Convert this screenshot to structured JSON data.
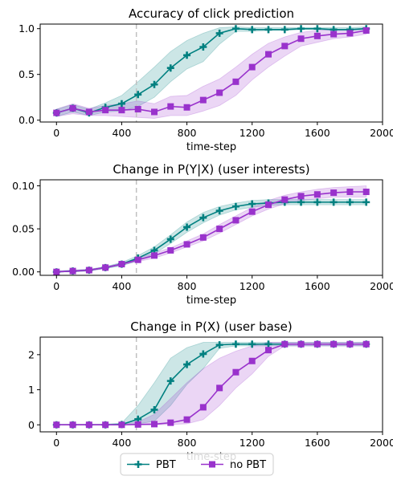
{
  "colors": {
    "pbt": "#008080",
    "no_pbt": "#9932CC",
    "vline": "#c0c0c0"
  },
  "legend": [
    {
      "label": "PBT",
      "marker": "plus",
      "color": "#008080"
    },
    {
      "label": "no PBT",
      "marker": "square",
      "color": "#9932CC"
    }
  ],
  "chart_data": [
    {
      "type": "line",
      "title": "Accuracy of click prediction",
      "xlabel": "time-step",
      "ylabel": "",
      "xlim": [
        -100,
        2000
      ],
      "ylim": [
        -0.02,
        1.05
      ],
      "xticks": [
        0,
        400,
        800,
        1200,
        1600,
        2000
      ],
      "xtick_labels": [
        "0",
        "400",
        "800",
        "1200",
        "1600",
        "2000"
      ],
      "yticks": [
        0.0,
        0.5,
        1.0
      ],
      "ytick_labels": [
        "0.0",
        "0.5",
        "1.0"
      ],
      "vline": 490,
      "x": [
        0,
        100,
        200,
        300,
        400,
        500,
        600,
        700,
        800,
        900,
        1000,
        1100,
        1200,
        1300,
        1400,
        1500,
        1600,
        1700,
        1800,
        1900
      ],
      "series": [
        {
          "name": "PBT",
          "marker": "plus",
          "color": "#008080",
          "values": [
            0.08,
            0.13,
            0.08,
            0.14,
            0.18,
            0.28,
            0.39,
            0.57,
            0.71,
            0.8,
            0.95,
            1.0,
            0.99,
            0.99,
            0.99,
            1.0,
            1.0,
            0.99,
            0.99,
            1.0
          ],
          "lower": [
            0.04,
            0.09,
            0.05,
            0.09,
            0.1,
            0.15,
            0.25,
            0.42,
            0.56,
            0.64,
            0.83,
            0.97,
            0.97,
            0.98,
            0.98,
            0.99,
            0.99,
            0.98,
            0.98,
            0.99
          ],
          "upper": [
            0.12,
            0.17,
            0.12,
            0.19,
            0.27,
            0.42,
            0.58,
            0.75,
            0.87,
            0.95,
            1.01,
            1.02,
            1.01,
            1.01,
            1.01,
            1.01,
            1.01,
            1.01,
            1.01,
            1.02
          ]
        },
        {
          "name": "no PBT",
          "marker": "square",
          "color": "#9932CC",
          "values": [
            0.08,
            0.13,
            0.09,
            0.11,
            0.11,
            0.12,
            0.09,
            0.15,
            0.14,
            0.22,
            0.3,
            0.42,
            0.58,
            0.72,
            0.81,
            0.89,
            0.92,
            0.94,
            0.95,
            0.98
          ],
          "lower": [
            0.04,
            0.07,
            0.05,
            0.05,
            0.04,
            0.03,
            0.02,
            0.05,
            0.05,
            0.1,
            0.16,
            0.27,
            0.44,
            0.58,
            0.7,
            0.81,
            0.85,
            0.89,
            0.91,
            0.94
          ],
          "upper": [
            0.12,
            0.18,
            0.13,
            0.16,
            0.18,
            0.21,
            0.18,
            0.26,
            0.27,
            0.37,
            0.45,
            0.58,
            0.72,
            0.84,
            0.91,
            0.96,
            0.98,
            0.99,
            0.99,
            1.01
          ]
        }
      ]
    },
    {
      "type": "line",
      "title": "Change in P(Y|X) (user interests)",
      "xlabel": "time-step",
      "ylabel": "",
      "xlim": [
        -100,
        2000
      ],
      "ylim": [
        -0.004,
        0.107
      ],
      "xticks": [
        0,
        400,
        800,
        1200,
        1600,
        2000
      ],
      "xtick_labels": [
        "0",
        "400",
        "800",
        "1200",
        "1600",
        "2000"
      ],
      "yticks": [
        0.0,
        0.05,
        0.1
      ],
      "ytick_labels": [
        "0.00",
        "0.05",
        "0.10"
      ],
      "vline": 490,
      "x": [
        0,
        100,
        200,
        300,
        400,
        500,
        600,
        700,
        800,
        900,
        1000,
        1100,
        1200,
        1300,
        1400,
        1500,
        1600,
        1700,
        1800,
        1900
      ],
      "series": [
        {
          "name": "PBT",
          "marker": "plus",
          "color": "#008080",
          "values": [
            0.0,
            0.001,
            0.002,
            0.005,
            0.009,
            0.016,
            0.025,
            0.038,
            0.052,
            0.063,
            0.071,
            0.076,
            0.079,
            0.08,
            0.081,
            0.081,
            0.081,
            0.081,
            0.081,
            0.081
          ],
          "lower": [
            0.0,
            0.0,
            0.001,
            0.004,
            0.007,
            0.013,
            0.021,
            0.033,
            0.046,
            0.057,
            0.066,
            0.072,
            0.075,
            0.077,
            0.078,
            0.078,
            0.078,
            0.078,
            0.078,
            0.078
          ],
          "upper": [
            0.001,
            0.002,
            0.003,
            0.006,
            0.011,
            0.019,
            0.029,
            0.043,
            0.058,
            0.069,
            0.076,
            0.08,
            0.083,
            0.084,
            0.084,
            0.084,
            0.084,
            0.084,
            0.084,
            0.084
          ]
        },
        {
          "name": "no PBT",
          "marker": "square",
          "color": "#9932CC",
          "values": [
            0.0,
            0.001,
            0.002,
            0.005,
            0.009,
            0.014,
            0.019,
            0.025,
            0.032,
            0.04,
            0.05,
            0.06,
            0.07,
            0.078,
            0.084,
            0.088,
            0.09,
            0.092,
            0.093,
            0.093
          ],
          "lower": [
            0.0,
            0.0,
            0.001,
            0.004,
            0.008,
            0.012,
            0.016,
            0.022,
            0.029,
            0.036,
            0.045,
            0.055,
            0.065,
            0.073,
            0.079,
            0.083,
            0.085,
            0.087,
            0.087,
            0.087
          ],
          "upper": [
            0.001,
            0.002,
            0.003,
            0.006,
            0.01,
            0.016,
            0.022,
            0.028,
            0.036,
            0.044,
            0.055,
            0.065,
            0.075,
            0.083,
            0.089,
            0.093,
            0.096,
            0.098,
            0.099,
            0.1
          ]
        }
      ]
    },
    {
      "type": "line",
      "title": "Change in P(X) (user base)",
      "xlabel": "time-step",
      "ylabel": "",
      "xlim": [
        -100,
        2000
      ],
      "ylim": [
        -0.2,
        2.5
      ],
      "xticks": [
        0,
        400,
        800,
        1200,
        1600,
        2000
      ],
      "xtick_labels": [
        "0",
        "400",
        "800",
        "1200",
        "1600",
        "2000"
      ],
      "yticks": [
        0,
        1,
        2
      ],
      "ytick_labels": [
        "0",
        "1",
        "2"
      ],
      "vline": 490,
      "x": [
        0,
        100,
        200,
        300,
        400,
        500,
        600,
        700,
        800,
        900,
        1000,
        1100,
        1200,
        1300,
        1400,
        1500,
        1600,
        1700,
        1800,
        1900
      ],
      "series": [
        {
          "name": "PBT",
          "marker": "plus",
          "color": "#008080",
          "values": [
            0.0,
            0.0,
            0.0,
            0.0,
            0.01,
            0.16,
            0.43,
            1.25,
            1.72,
            2.02,
            2.28,
            2.3,
            2.3,
            2.3,
            2.3,
            2.3,
            2.3,
            2.3,
            2.3,
            2.3
          ],
          "lower": [
            0.0,
            0.0,
            0.0,
            0.0,
            0.0,
            0.03,
            0.1,
            0.55,
            1.15,
            1.6,
            2.18,
            2.25,
            2.25,
            2.25,
            2.25,
            2.25,
            2.25,
            2.25,
            2.25,
            2.25
          ],
          "upper": [
            0.02,
            0.02,
            0.02,
            0.02,
            0.05,
            0.55,
            1.2,
            1.9,
            2.2,
            2.35,
            2.35,
            2.35,
            2.35,
            2.35,
            2.35,
            2.35,
            2.35,
            2.35,
            2.35,
            2.35
          ]
        },
        {
          "name": "no PBT",
          "marker": "square",
          "color": "#9932CC",
          "values": [
            0.0,
            0.0,
            0.0,
            0.0,
            0.0,
            0.01,
            0.02,
            0.06,
            0.15,
            0.5,
            1.05,
            1.5,
            1.82,
            2.13,
            2.3,
            2.3,
            2.3,
            2.3,
            2.3,
            2.3
          ],
          "lower": [
            0.0,
            0.0,
            0.0,
            0.0,
            0.0,
            0.0,
            0.0,
            0.01,
            0.03,
            0.15,
            0.55,
            1.05,
            1.45,
            1.95,
            2.25,
            2.25,
            2.25,
            2.25,
            2.25,
            2.25
          ],
          "upper": [
            0.02,
            0.02,
            0.02,
            0.02,
            0.02,
            0.08,
            0.3,
            0.75,
            1.2,
            1.6,
            1.9,
            2.1,
            2.25,
            2.35,
            2.35,
            2.35,
            2.35,
            2.35,
            2.35,
            2.35
          ]
        }
      ]
    }
  ]
}
